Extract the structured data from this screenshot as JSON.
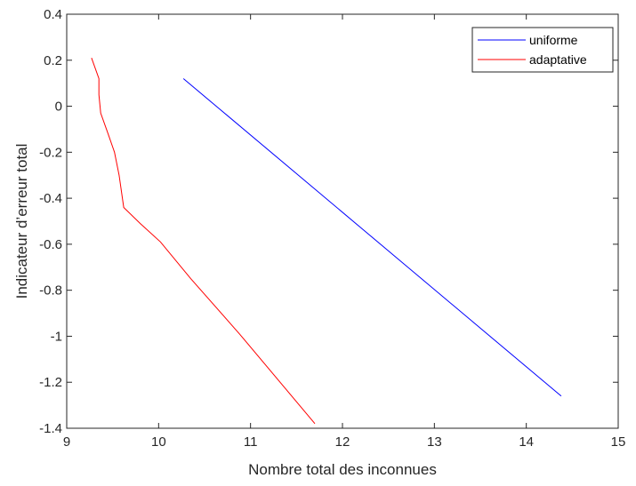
{
  "chart_data": {
    "type": "line",
    "xlabel": "Nombre total des inconnues",
    "ylabel": "Indicateur d’erreur total",
    "xlim": [
      9,
      15
    ],
    "ylim": [
      -1.4,
      0.4
    ],
    "xticks": [
      9,
      10,
      11,
      12,
      13,
      14,
      15
    ],
    "yticks": [
      0.4,
      0.2,
      0,
      -0.2,
      -0.4,
      -0.6,
      -0.8,
      -1,
      -1.2,
      -1.4
    ],
    "x_tick_labels": [
      "9",
      "10",
      "11",
      "12",
      "13",
      "14",
      "15"
    ],
    "y_tick_labels": [
      "0.4",
      "0.2",
      "0",
      "-0.2",
      "-0.4",
      "-0.6",
      "-0.8",
      "-1",
      "-1.2",
      "-1.4"
    ],
    "grid": false,
    "legend_position": "top-right",
    "series": [
      {
        "name": "uniforme",
        "color": "#0000ff",
        "x": [
          10.27,
          14.38
        ],
        "y": [
          0.12,
          -1.26
        ]
      },
      {
        "name": "adaptative",
        "color": "#ff0000",
        "x": [
          9.27,
          9.35,
          9.35,
          9.37,
          9.45,
          9.52,
          9.57,
          9.62,
          9.8,
          10.02,
          10.35,
          10.88,
          11.7
        ],
        "y": [
          0.21,
          0.12,
          0.05,
          -0.03,
          -0.12,
          -0.2,
          -0.3,
          -0.44,
          -0.51,
          -0.59,
          -0.75,
          -0.99,
          -1.38
        ]
      }
    ]
  }
}
